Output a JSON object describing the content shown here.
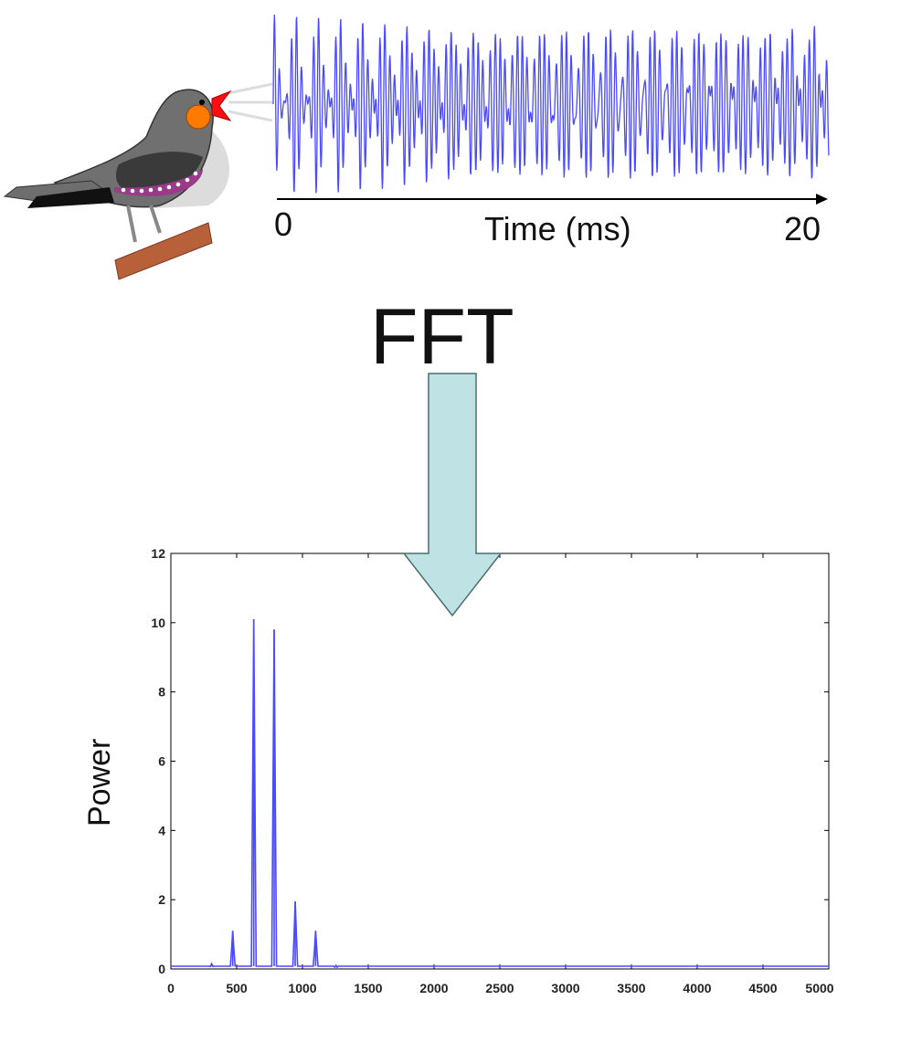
{
  "waveform": {
    "time_start_label": "0",
    "time_end_label": "20",
    "axis_label": "Time (ms)"
  },
  "transform_label": "FFT",
  "colors": {
    "signal": "#4a4aff",
    "arrow_fill": "#bfe3e4",
    "arrow_stroke": "#4a6e70"
  },
  "icons": [
    "bird-icon",
    "down-arrow-icon"
  ],
  "chart_data": {
    "type": "line",
    "ylabel": "Power",
    "xlabel": "",
    "xlim": [
      0,
      5000
    ],
    "ylim": [
      0,
      12
    ],
    "x_ticks": [
      "0",
      "500",
      "1000",
      "1500",
      "2000",
      "2500",
      "3000",
      "3500",
      "4000",
      "4500",
      "5000"
    ],
    "y_ticks": [
      "0",
      "2",
      "4",
      "6",
      "8",
      "10",
      "12"
    ],
    "peaks": [
      {
        "x": 310,
        "y": 0.15
      },
      {
        "x": 470,
        "y": 1.1
      },
      {
        "x": 630,
        "y": 10.1
      },
      {
        "x": 785,
        "y": 9.8
      },
      {
        "x": 945,
        "y": 1.95
      },
      {
        "x": 1100,
        "y": 1.1
      },
      {
        "x": 1255,
        "y": 0.1
      }
    ]
  }
}
